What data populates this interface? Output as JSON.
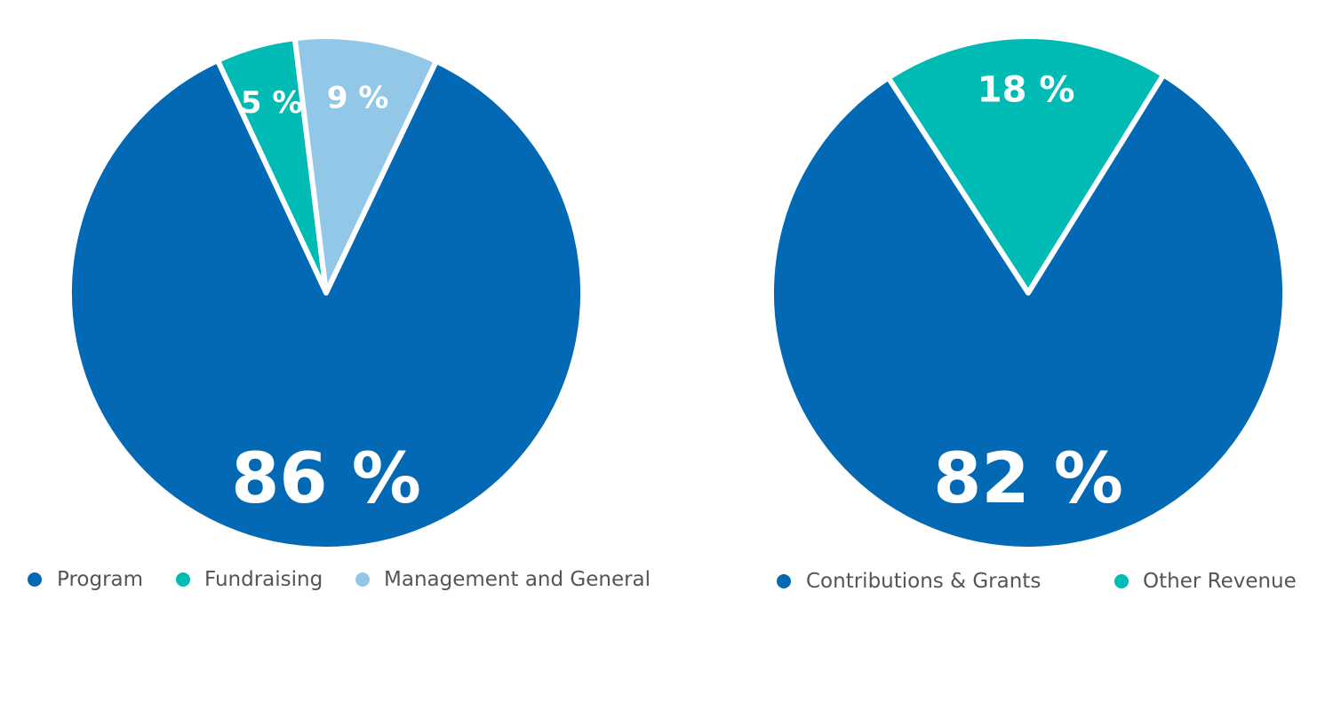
{
  "chart_data": [
    {
      "type": "pie",
      "title": "",
      "start_angle_deg": -25,
      "direction": "clockwise",
      "slices": [
        {
          "label": "Fundraising",
          "value": 5,
          "color": "#00BAB4",
          "data_label": "5 %"
        },
        {
          "label": "Management and General",
          "value": 9,
          "color": "#92C7E8",
          "data_label": "9 %"
        },
        {
          "label": "Program",
          "value": 86,
          "color": "#0369B4",
          "data_label": "86 %"
        }
      ],
      "legend": {
        "placement": "bottom",
        "items": [
          {
            "label": "Program",
            "color": "#0369B4"
          },
          {
            "label": "Fundraising",
            "color": "#00BAB4"
          },
          {
            "label": "Management and General",
            "color": "#92C7E8"
          }
        ]
      }
    },
    {
      "type": "pie",
      "title": "",
      "start_angle_deg": -33,
      "direction": "clockwise",
      "slices": [
        {
          "label": "Other Revenue",
          "value": 18,
          "color": "#00BAB4",
          "data_label": "18 %"
        },
        {
          "label": "Contributions & Grants",
          "value": 82,
          "color": "#0369B4",
          "data_label": "82 %"
        }
      ],
      "legend": {
        "placement": "bottom",
        "items": [
          {
            "label": "Contributions & Grants",
            "color": "#0369B4"
          },
          {
            "label": "Other Revenue",
            "color": "#00BAB4"
          }
        ]
      }
    }
  ]
}
